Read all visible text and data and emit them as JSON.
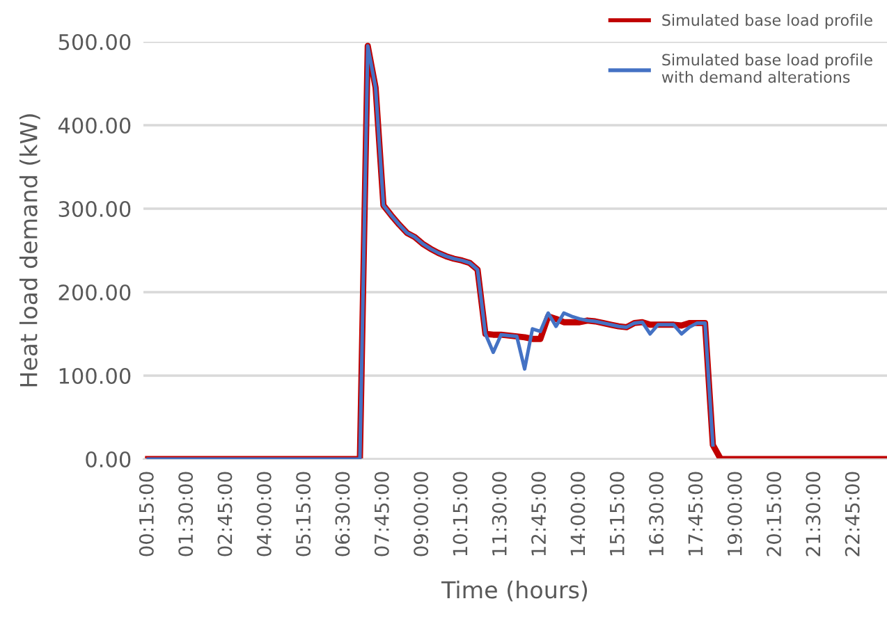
{
  "chart_data": {
    "type": "line",
    "xlabel": "Time (hours)",
    "ylabel": "Heat load demand (kW)",
    "x": [
      0.25,
      0.5,
      0.75,
      1.0,
      1.25,
      1.5,
      1.75,
      2.0,
      2.25,
      2.5,
      2.75,
      3.0,
      3.25,
      3.5,
      3.75,
      4.0,
      4.25,
      4.5,
      4.75,
      5.0,
      5.25,
      5.5,
      5.75,
      6.0,
      6.25,
      6.5,
      6.75,
      7.0,
      7.25,
      7.5,
      7.75,
      8.0,
      8.25,
      8.5,
      8.75,
      9.0,
      9.25,
      9.5,
      9.75,
      10.0,
      10.25,
      10.5,
      10.75,
      11.0,
      11.25,
      11.5,
      11.75,
      12.0,
      12.25,
      12.5,
      12.75,
      13.0,
      13.25,
      13.5,
      13.75,
      14.0,
      14.25,
      14.5,
      14.75,
      15.0,
      15.25,
      15.5,
      15.75,
      16.0,
      16.25,
      16.5,
      16.75,
      17.0,
      17.25,
      17.5,
      17.75,
      18.0,
      18.25,
      18.5,
      18.75,
      19.0,
      19.25,
      19.5,
      19.75,
      20.0,
      20.25,
      20.5,
      20.75,
      21.0,
      21.25,
      21.5,
      21.75,
      22.0,
      22.25,
      22.5,
      22.75,
      23.0,
      23.25,
      23.5,
      23.75
    ],
    "series": [
      {
        "name": "Simulated base load profile",
        "color": "#c00000",
        "values": [
          0,
          0,
          0,
          0,
          0,
          0,
          0,
          0,
          0,
          0,
          0,
          0,
          0,
          0,
          0,
          0,
          0,
          0,
          0,
          0,
          0,
          0,
          0,
          0,
          0,
          0,
          0,
          0,
          495,
          445,
          304,
          292,
          281,
          271,
          266,
          258,
          252,
          247,
          243,
          240,
          238,
          235,
          227,
          150,
          149,
          149,
          148,
          147,
          146,
          144,
          144,
          171,
          168,
          164,
          164,
          164,
          166,
          165,
          163,
          161,
          159,
          158,
          163,
          164,
          161,
          161,
          161,
          161,
          160,
          163,
          163,
          163,
          17,
          0,
          0,
          0,
          0,
          0,
          0,
          0,
          0,
          0,
          0,
          0,
          0,
          0,
          0,
          0,
          0,
          0,
          0,
          0,
          0,
          0,
          0
        ]
      },
      {
        "name": "Simulated base load profile\nwith demand alterations",
        "color": "#4472c4",
        "values": [
          0,
          0,
          0,
          0,
          0,
          0,
          0,
          0,
          0,
          0,
          0,
          0,
          0,
          0,
          0,
          0,
          0,
          0,
          0,
          0,
          0,
          0,
          0,
          0,
          0,
          0,
          0,
          0,
          495,
          445,
          304,
          292,
          281,
          271,
          266,
          258,
          252,
          247,
          243,
          240,
          238,
          235,
          227,
          150,
          128,
          149,
          148,
          147,
          108,
          156,
          153,
          175,
          159,
          175,
          171,
          168,
          166,
          165,
          163,
          161,
          159,
          158,
          163,
          164,
          150,
          161,
          161,
          161,
          150,
          158,
          163,
          163,
          17,
          null,
          null,
          null,
          null,
          null,
          null,
          null,
          null,
          null,
          null,
          null,
          null,
          null,
          null,
          null,
          null,
          null,
          null,
          null,
          null,
          null,
          null
        ]
      }
    ],
    "xlim": [
      0.1,
      23.8
    ],
    "xticks": [
      {
        "value": 0.25,
        "label": "00:15:00"
      },
      {
        "value": 1.5,
        "label": "01:30:00"
      },
      {
        "value": 2.75,
        "label": "02:45:00"
      },
      {
        "value": 4.0,
        "label": "04:00:00"
      },
      {
        "value": 5.25,
        "label": "05:15:00"
      },
      {
        "value": 6.5,
        "label": "06:30:00"
      },
      {
        "value": 7.75,
        "label": "07:45:00"
      },
      {
        "value": 9.0,
        "label": "09:00:00"
      },
      {
        "value": 10.25,
        "label": "10:15:00"
      },
      {
        "value": 11.5,
        "label": "11:30:00"
      },
      {
        "value": 12.75,
        "label": "12:45:00"
      },
      {
        "value": 14.0,
        "label": "14:00:00"
      },
      {
        "value": 15.25,
        "label": "15:15:00"
      },
      {
        "value": 16.5,
        "label": "16:30:00"
      },
      {
        "value": 17.75,
        "label": "17:45:00"
      },
      {
        "value": 19.0,
        "label": "19:00:00"
      },
      {
        "value": 20.25,
        "label": "20:15:00"
      },
      {
        "value": 21.5,
        "label": "21:30:00"
      },
      {
        "value": 22.75,
        "label": "22:45:00"
      }
    ],
    "ylim": [
      0,
      500
    ],
    "yticks": [
      {
        "value": 0,
        "label": "0.00"
      },
      {
        "value": 100,
        "label": "100.00"
      },
      {
        "value": 200,
        "label": "200.00"
      },
      {
        "value": 300,
        "label": "300.00"
      },
      {
        "value": 400,
        "label": "400.00"
      },
      {
        "value": 500,
        "label": "500.00"
      }
    ],
    "grid": "y",
    "legend": "top right",
    "marker": "none",
    "line_style": "solid"
  }
}
